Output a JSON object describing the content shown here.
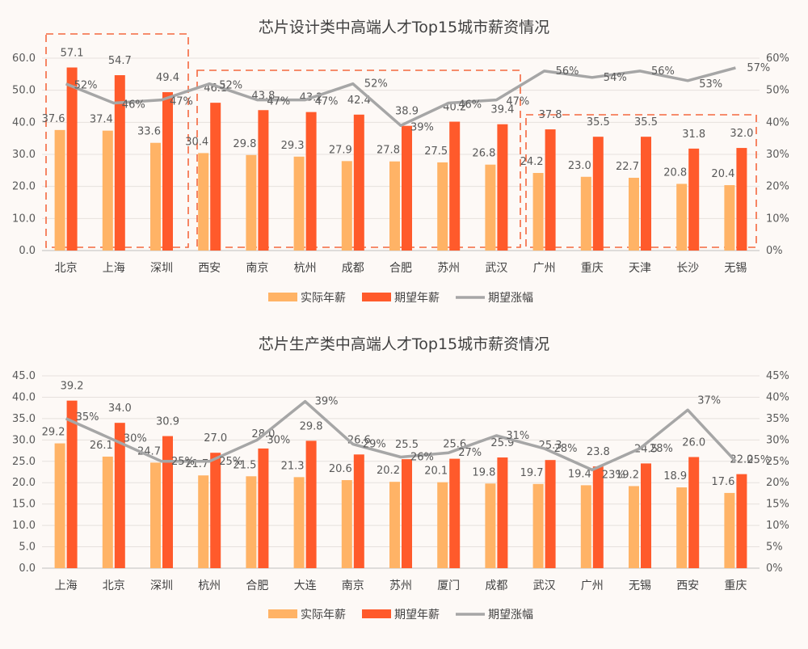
{
  "colors": {
    "actual": "#ffb366",
    "expected": "#ff5a2b",
    "growth": "#a6a6a6",
    "highlight_box": "#f4683f",
    "grid": "#e6e1dd",
    "background": "#fdf9f6"
  },
  "legend": {
    "actual": "实际年薪",
    "expected": "期望年薪",
    "growth": "期望涨幅"
  },
  "chart_data": [
    {
      "type": "bar",
      "title": "芯片设计类中高端人才Top15城市薪资情况",
      "categories": [
        "北京",
        "上海",
        "深圳",
        "西安",
        "南京",
        "杭州",
        "成都",
        "合肥",
        "苏州",
        "武汉",
        "广州",
        "重庆",
        "天津",
        "长沙",
        "无锡"
      ],
      "series": [
        {
          "name": "实际年薪",
          "type": "bar",
          "axis": "left",
          "values": [
            37.6,
            37.4,
            33.6,
            30.4,
            29.8,
            29.3,
            27.9,
            27.8,
            27.5,
            26.8,
            24.2,
            23.0,
            22.7,
            20.8,
            20.4
          ]
        },
        {
          "name": "期望年薪",
          "type": "bar",
          "axis": "left",
          "values": [
            57.1,
            54.7,
            49.4,
            46.1,
            43.8,
            43.2,
            42.4,
            38.9,
            40.2,
            39.4,
            37.8,
            35.5,
            35.5,
            31.8,
            32.0
          ]
        },
        {
          "name": "期望涨幅",
          "type": "line",
          "axis": "right",
          "values": [
            52,
            46,
            47,
            52,
            47,
            47,
            52,
            39,
            46,
            47,
            56,
            54,
            56,
            53,
            57
          ]
        }
      ],
      "left_ylim": [
        0,
        60
      ],
      "left_ticks": [
        "0.0",
        "10.0",
        "20.0",
        "30.0",
        "40.0",
        "50.0",
        "60.0"
      ],
      "right_ylim": [
        0,
        60
      ],
      "right_ticks": [
        "0%",
        "10%",
        "20%",
        "30%",
        "40%",
        "50%",
        "60%"
      ],
      "grid": true,
      "legend_position": "bottom",
      "highlight_groups": [
        [
          0,
          2
        ],
        [
          3,
          9
        ],
        [
          10,
          14
        ]
      ]
    },
    {
      "type": "bar",
      "title": "芯片生产类中高端人才Top15城市薪资情况",
      "categories": [
        "上海",
        "北京",
        "深圳",
        "杭州",
        "合肥",
        "大连",
        "南京",
        "苏州",
        "厦门",
        "成都",
        "武汉",
        "广州",
        "无锡",
        "西安",
        "重庆"
      ],
      "series": [
        {
          "name": "实际年薪",
          "type": "bar",
          "axis": "left",
          "values": [
            29.2,
            26.1,
            24.7,
            21.7,
            21.5,
            21.3,
            20.6,
            20.2,
            20.1,
            19.8,
            19.7,
            19.4,
            19.2,
            18.9,
            17.6
          ]
        },
        {
          "name": "期望年薪",
          "type": "bar",
          "axis": "left",
          "values": [
            39.2,
            34.0,
            30.9,
            27.0,
            28.0,
            29.8,
            26.6,
            25.5,
            25.6,
            25.9,
            25.3,
            23.8,
            24.5,
            26.0,
            22.0
          ]
        },
        {
          "name": "期望涨幅",
          "type": "line",
          "axis": "right",
          "values": [
            35,
            30,
            25,
            25,
            30,
            39,
            29,
            26,
            27,
            31,
            28,
            23,
            28,
            37,
            25
          ]
        }
      ],
      "left_ylim": [
        0,
        45
      ],
      "left_ticks": [
        "0.0",
        "5.0",
        "10.0",
        "15.0",
        "20.0",
        "25.0",
        "30.0",
        "35.0",
        "40.0",
        "45.0"
      ],
      "right_ylim": [
        0,
        45
      ],
      "right_ticks": [
        "0%",
        "5%",
        "10%",
        "15%",
        "20%",
        "25%",
        "30%",
        "35%",
        "40%",
        "45%"
      ],
      "grid": true,
      "legend_position": "bottom",
      "highlight_groups": []
    }
  ]
}
